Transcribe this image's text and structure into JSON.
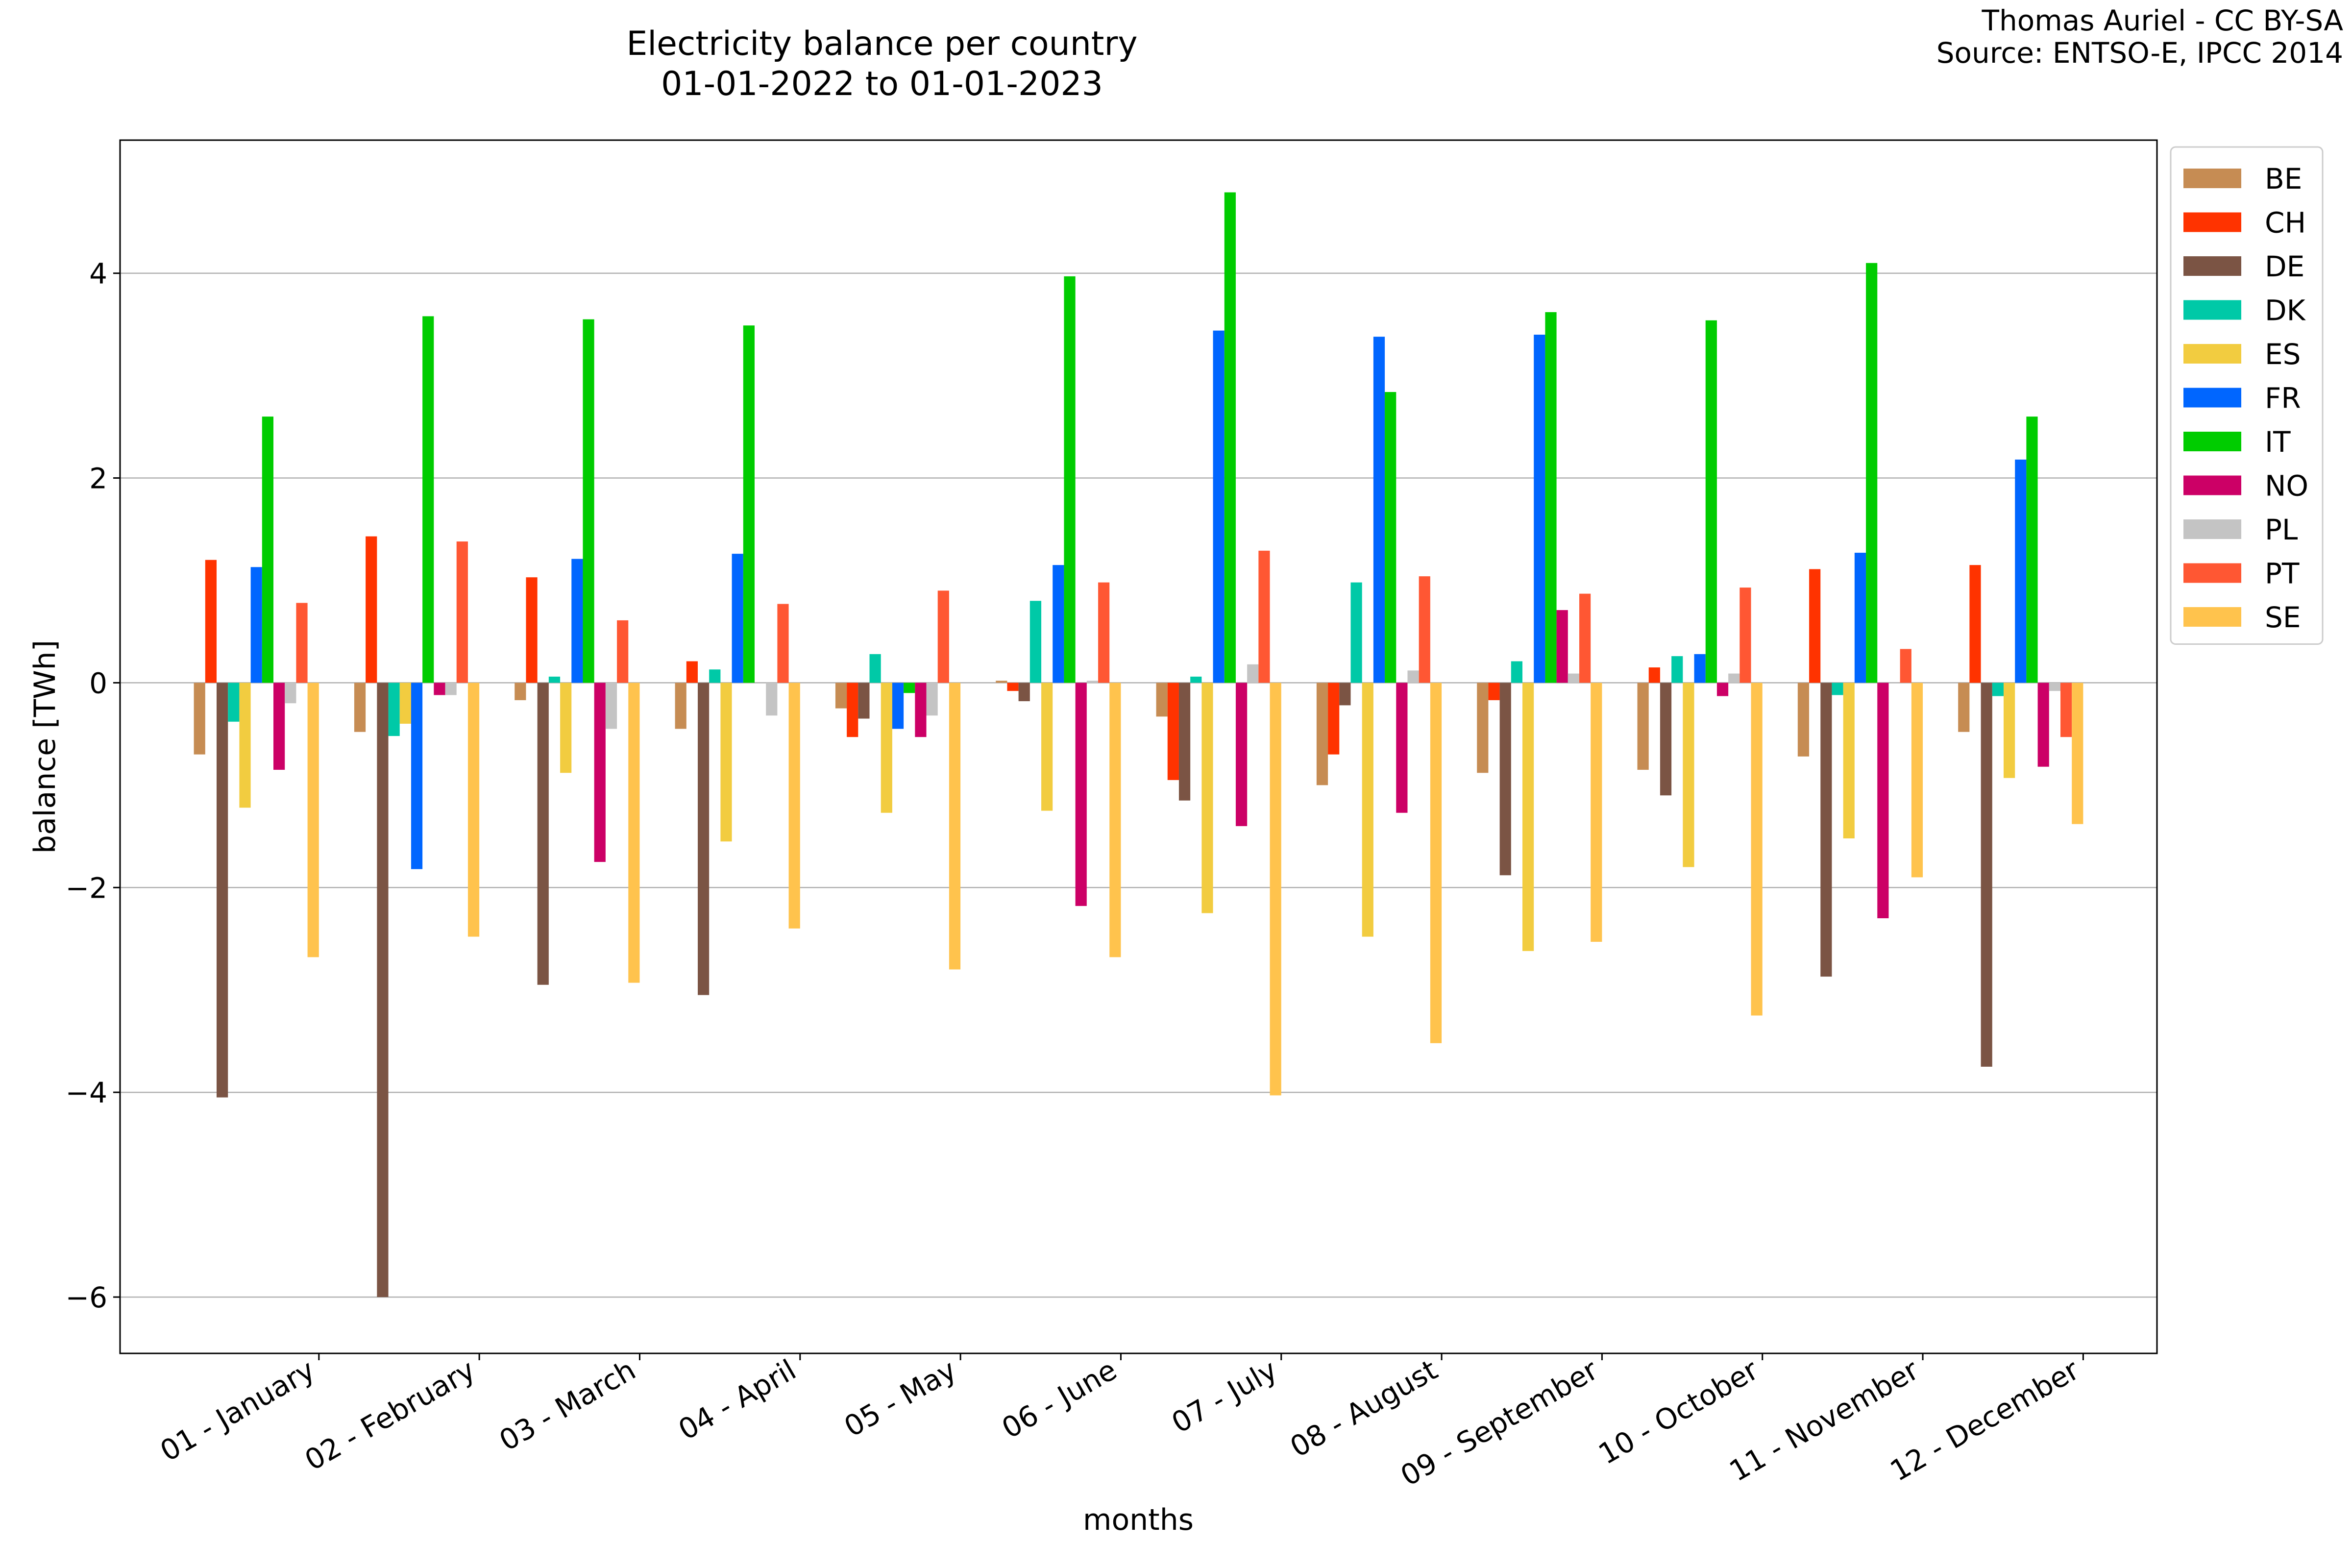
{
  "chart_data": {
    "type": "bar",
    "title": "Electricity balance per country",
    "subtitle": "01-01-2022 to 01-01-2023",
    "credit": [
      "Thomas Auriel - CC BY-SA",
      "Source: ENTSO-E, IPCC 2014"
    ],
    "xlabel": "months",
    "ylabel": "balance [TWh]",
    "ylim": [
      -6.55,
      5.3
    ],
    "yticks": [
      -6,
      -4,
      -2,
      0,
      2,
      4
    ],
    "ytick_labels": [
      "−6",
      "−4",
      "−2",
      "0",
      "2",
      "4"
    ],
    "grid": "horizontal",
    "legend_position": "top-right, outside plot",
    "categories": [
      "01 - January",
      "02 - February",
      "03 - March",
      "04 - April",
      "05 - May",
      "06 - June",
      "07 - July",
      "08 - August",
      "09 - September",
      "10 - October",
      "11 - November",
      "12 - December"
    ],
    "series": [
      {
        "name": "BE",
        "color": "#c68c53",
        "values": [
          -0.7,
          -0.48,
          -0.17,
          -0.45,
          -0.25,
          0.02,
          -0.33,
          -1.0,
          -0.88,
          -0.85,
          -0.72,
          -0.48
        ]
      },
      {
        "name": "CH",
        "color": "#ff3300",
        "values": [
          1.2,
          1.43,
          1.03,
          0.21,
          -0.53,
          -0.08,
          -0.95,
          -0.7,
          -0.17,
          0.15,
          1.11,
          1.15
        ]
      },
      {
        "name": "DE",
        "color": "#7b5444",
        "values": [
          -4.05,
          -6.0,
          -2.95,
          -3.05,
          -0.35,
          -0.18,
          -1.15,
          -0.22,
          -1.88,
          -1.1,
          -2.87,
          -3.75
        ]
      },
      {
        "name": "DK",
        "color": "#00c9a7",
        "values": [
          -0.38,
          -0.52,
          0.06,
          0.13,
          0.28,
          0.8,
          0.06,
          0.98,
          0.21,
          0.26,
          -0.12,
          -0.13
        ]
      },
      {
        "name": "ES",
        "color": "#f2cc40",
        "values": [
          -1.22,
          -0.4,
          -0.88,
          -1.55,
          -1.27,
          -1.25,
          -2.25,
          -2.48,
          -2.62,
          -1.8,
          -1.52,
          -0.93
        ]
      },
      {
        "name": "FR",
        "color": "#0066ff",
        "values": [
          1.13,
          -1.82,
          1.21,
          1.26,
          -0.45,
          1.15,
          3.44,
          3.38,
          3.4,
          0.28,
          1.27,
          2.18
        ]
      },
      {
        "name": "IT",
        "color": "#00cc00",
        "values": [
          2.6,
          3.58,
          3.55,
          3.49,
          -0.1,
          3.97,
          4.79,
          2.84,
          3.62,
          3.54,
          4.1,
          2.6
        ]
      },
      {
        "name": "NO",
        "color": "#cc0066",
        "values": [
          -0.85,
          -0.12,
          -1.75,
          0.0,
          -0.53,
          -2.18,
          -1.4,
          -1.27,
          0.71,
          -0.13,
          -2.3,
          -0.82
        ]
      },
      {
        "name": "PL",
        "color": "#c4c4c4",
        "values": [
          -0.2,
          -0.12,
          -0.45,
          -0.32,
          -0.32,
          0.02,
          0.18,
          0.12,
          0.09,
          0.09,
          0.0,
          -0.08
        ]
      },
      {
        "name": "PT",
        "color": "#ff5733",
        "values": [
          0.78,
          1.38,
          0.61,
          0.77,
          0.9,
          0.98,
          1.29,
          1.04,
          0.87,
          0.93,
          0.33,
          -0.53
        ]
      },
      {
        "name": "SE",
        "color": "#ffc34d",
        "values": [
          -2.68,
          -2.48,
          -2.93,
          -2.4,
          -2.8,
          -2.68,
          -4.03,
          -3.52,
          -2.53,
          -3.25,
          -1.9,
          -1.38
        ]
      }
    ]
  }
}
